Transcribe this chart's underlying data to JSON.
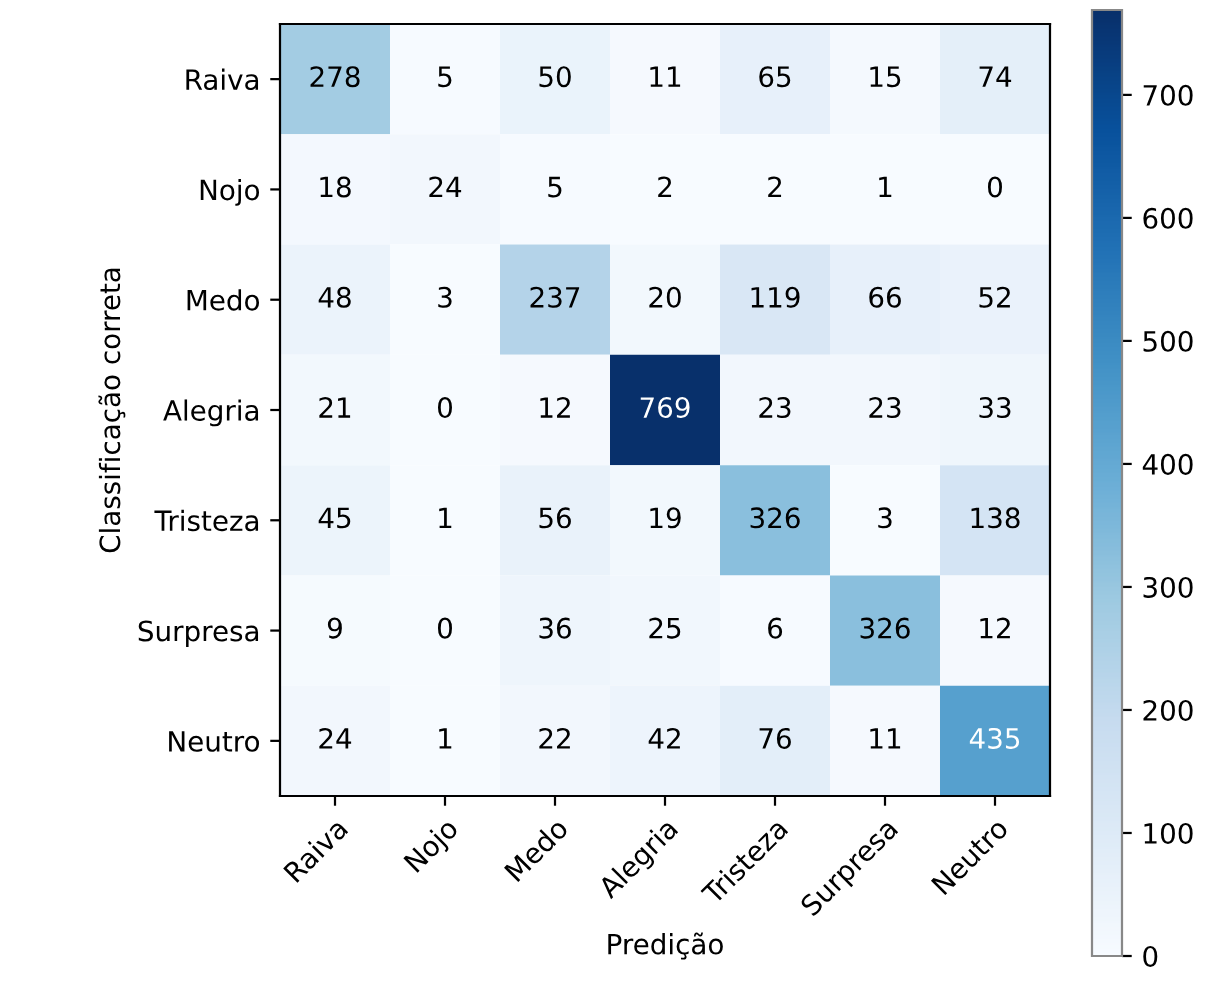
{
  "chart_data": {
    "type": "heatmap",
    "xlabel": "Predição",
    "ylabel": "Classificação correta",
    "categories": [
      "Raiva",
      "Nojo",
      "Medo",
      "Alegria",
      "Tristeza",
      "Surpresa",
      "Neutro"
    ],
    "y_categories": [
      "Raiva",
      "Nojo",
      "Medo",
      "Alegria",
      "Tristeza",
      "Surpresa",
      "Neutro"
    ],
    "cells": [
      [
        278,
        5,
        50,
        11,
        65,
        15,
        74
      ],
      [
        18,
        24,
        5,
        2,
        2,
        1,
        0
      ],
      [
        48,
        3,
        237,
        20,
        119,
        66,
        52
      ],
      [
        21,
        0,
        12,
        769,
        23,
        23,
        33
      ],
      [
        45,
        1,
        56,
        19,
        326,
        3,
        138
      ],
      [
        9,
        0,
        36,
        25,
        6,
        326,
        12
      ],
      [
        24,
        1,
        22,
        42,
        76,
        11,
        435
      ]
    ],
    "clim": [
      0,
      769
    ],
    "cticks": [
      0,
      100,
      200,
      300,
      400,
      500,
      600,
      700
    ],
    "data_labels": true
  }
}
